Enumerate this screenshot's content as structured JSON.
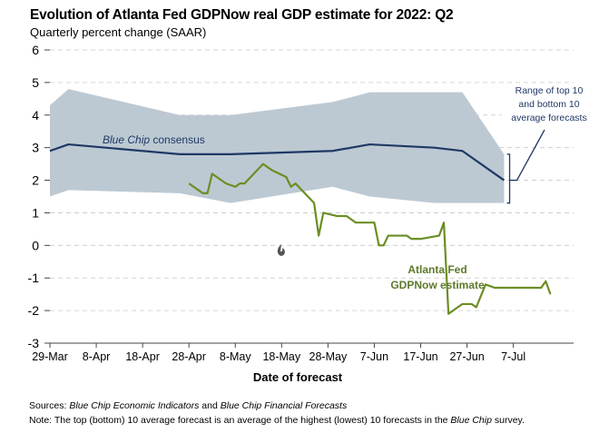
{
  "chart_data": {
    "type": "line",
    "title": "Evolution of Atlanta Fed GDPNow real GDP estimate for 2022: Q2",
    "subtitle": "Quarterly percent change (SAAR)",
    "xlabel": "Date of forecast",
    "ylabel": "",
    "ylim": [
      -3,
      6
    ],
    "yticks": [
      "-3",
      "-2",
      "-1",
      "0",
      "1",
      "2",
      "3",
      "4",
      "5",
      "6"
    ],
    "xlim_day": [
      0,
      113
    ],
    "xticks": [
      {
        "day": 0,
        "label": "29-Mar"
      },
      {
        "day": 10,
        "label": "8-Apr"
      },
      {
        "day": 20,
        "label": "18-Apr"
      },
      {
        "day": 30,
        "label": "28-Apr"
      },
      {
        "day": 40,
        "label": "8-May"
      },
      {
        "day": 50,
        "label": "18-May"
      },
      {
        "day": 60,
        "label": "28-May"
      },
      {
        "day": 70,
        "label": "7-Jun"
      },
      {
        "day": 80,
        "label": "17-Jun"
      },
      {
        "day": 90,
        "label": "27-Jun"
      },
      {
        "day": 100,
        "label": "7-Jul"
      }
    ],
    "series": [
      {
        "name": "Range of top 10 and bottom 10 average forecasts",
        "kind": "band",
        "color": "#bcc9d3",
        "x": [
          -3,
          4,
          28,
          39,
          61,
          69,
          83,
          89,
          98
        ],
        "upper": [
          4.3,
          4.8,
          4.0,
          4.0,
          4.4,
          4.7,
          4.7,
          4.7,
          2.8
        ],
        "lower": [
          1.5,
          1.7,
          1.6,
          1.3,
          1.8,
          1.5,
          1.3,
          1.3,
          1.3
        ]
      },
      {
        "name": "Blue Chip consensus",
        "kind": "line",
        "color": "#1f3864",
        "x": [
          -3,
          4,
          28,
          39,
          61,
          69,
          83,
          89,
          98
        ],
        "y": [
          2.9,
          3.1,
          2.8,
          2.8,
          2.9,
          3.1,
          3.0,
          2.9,
          2.0
        ]
      },
      {
        "name": "Atlanta Fed GDPNow estimate",
        "kind": "line",
        "color": "#6b8e23",
        "x": [
          30,
          32,
          33,
          34,
          35,
          36,
          38,
          40,
          41,
          42,
          44,
          46,
          48,
          51,
          52,
          53,
          57,
          58,
          59,
          62,
          63,
          64,
          65,
          66,
          68,
          69,
          70,
          71,
          72,
          73,
          74,
          77,
          78,
          79,
          80,
          84,
          85,
          86,
          87,
          88,
          89,
          91,
          92,
          94,
          95,
          96,
          97,
          98,
          99,
          100,
          101,
          106,
          107,
          108
        ],
        "y": [
          1.9,
          1.7,
          1.6,
          1.6,
          2.2,
          2.1,
          1.9,
          1.8,
          1.9,
          1.9,
          2.2,
          2.5,
          2.3,
          2.1,
          1.8,
          1.9,
          1.3,
          0.3,
          1.0,
          0.9,
          0.9,
          0.9,
          0.8,
          0.7,
          0.7,
          0.7,
          0.7,
          0.0,
          0.0,
          0.3,
          0.3,
          0.3,
          0.2,
          0.2,
          0.2,
          0.3,
          0.7,
          -2.1,
          -2.0,
          -1.9,
          -1.8,
          -1.8,
          -1.9,
          -1.2,
          -1.25,
          -1.3,
          -1.3,
          -1.3,
          -1.3,
          -1.3,
          -1.3,
          -1.3,
          -1.1,
          -1.5
        ]
      }
    ],
    "annotations": {
      "blue_chip": {
        "prefix": "Blue Chip",
        "suffix": "consensus"
      },
      "gdpnow_line1": "Atlanta Fed",
      "gdpnow_line2": "GDPNow estimate",
      "range_line1": "Range of top 10",
      "range_line2": "and bottom 10",
      "range_line3": "average forecasts"
    }
  },
  "notes": {
    "sources_label": "Sources:",
    "sources_a": "Blue Chip Economic Indicators",
    "sources_and": "and",
    "sources_b": "Blue Chip Financial Forecasts",
    "note_label": "Note:",
    "note_text": "The top (bottom) 10 average forecast is an average of the highest (lowest) 10 forecasts in the",
    "note_italic": "Blue Chip",
    "note_end": "survey."
  },
  "colors": {
    "band": "#bcc9d3",
    "blue_chip": "#1f3864",
    "gdpnow": "#6b8e23",
    "axis": "#444444"
  }
}
